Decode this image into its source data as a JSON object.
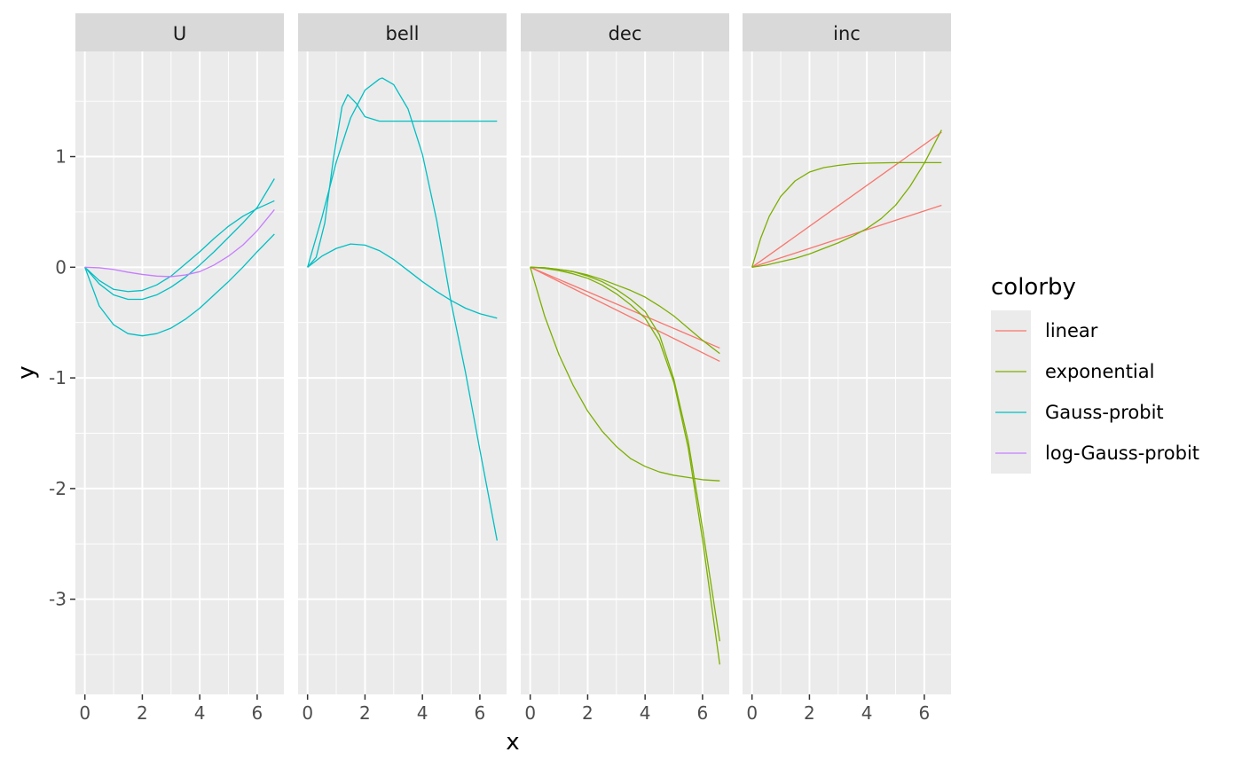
{
  "chart_data": {
    "type": "line",
    "facets": [
      "U",
      "bell",
      "dec",
      "inc"
    ],
    "xlabel": "x",
    "ylabel": "y",
    "xlim": [
      -0.33,
      6.93
    ],
    "ylim": [
      -3.86,
      1.95
    ],
    "x_ticks": [
      0,
      2,
      4,
      6
    ],
    "x_tick_labels": [
      "0",
      "2",
      "4",
      "6"
    ],
    "y_ticks": [
      1,
      0,
      -1,
      -2,
      -3
    ],
    "y_tick_labels": [
      "1",
      "0",
      "-1",
      "-2",
      "-3"
    ],
    "grid": true,
    "legend": {
      "title": "colorby",
      "position": "right",
      "entries": [
        {
          "label": "linear",
          "color": "#F8766D"
        },
        {
          "label": "exponential",
          "color": "#7CAE00"
        },
        {
          "label": "Gauss-probit",
          "color": "#00BFC4"
        },
        {
          "label": "log-Gauss-probit",
          "color": "#C77CFF"
        }
      ]
    },
    "series": [
      {
        "facet": "U",
        "group": "Gauss-probit",
        "x": [
          0,
          0.5,
          1,
          1.5,
          2,
          2.5,
          3,
          3.5,
          4,
          4.5,
          5,
          5.5,
          6,
          6.6
        ],
        "y": [
          0,
          -0.35,
          -0.52,
          -0.6,
          -0.62,
          -0.6,
          -0.55,
          -0.47,
          -0.37,
          -0.25,
          -0.13,
          0.0,
          0.14,
          0.3
        ]
      },
      {
        "facet": "U",
        "group": "Gauss-probit",
        "x": [
          0,
          0.5,
          1,
          1.5,
          2,
          2.5,
          3,
          3.5,
          4,
          4.5,
          5,
          5.5,
          6,
          6.6
        ],
        "y": [
          0,
          -0.15,
          -0.25,
          -0.29,
          -0.29,
          -0.25,
          -0.18,
          -0.09,
          0.02,
          0.14,
          0.27,
          0.4,
          0.54,
          0.8
        ]
      },
      {
        "facet": "U",
        "group": "Gauss-probit",
        "x": [
          0,
          0.5,
          1,
          1.5,
          2,
          2.5,
          3,
          3.5,
          4,
          4.5,
          5,
          5.5,
          6,
          6.6
        ],
        "y": [
          0,
          -0.12,
          -0.2,
          -0.22,
          -0.21,
          -0.16,
          -0.08,
          0.03,
          0.14,
          0.26,
          0.37,
          0.46,
          0.53,
          0.6
        ]
      },
      {
        "facet": "U",
        "group": "log-Gauss-probit",
        "x": [
          0,
          0.5,
          1,
          1.5,
          2,
          2.5,
          3,
          3.5,
          4,
          4.5,
          5,
          5.5,
          6,
          6.6
        ],
        "y": [
          0,
          -0.005,
          -0.02,
          -0.045,
          -0.065,
          -0.08,
          -0.085,
          -0.07,
          -0.04,
          0.02,
          0.1,
          0.2,
          0.33,
          0.52
        ]
      },
      {
        "facet": "bell",
        "group": "Gauss-probit",
        "x": [
          0,
          0.5,
          1,
          1.5,
          2,
          2.5,
          3,
          3.5,
          4,
          4.5,
          5,
          5.5,
          6,
          6.6
        ],
        "y": [
          0,
          0.1,
          0.17,
          0.21,
          0.2,
          0.15,
          0.07,
          -0.03,
          -0.13,
          -0.22,
          -0.3,
          -0.37,
          -0.42,
          -0.46
        ]
      },
      {
        "facet": "bell",
        "group": "Gauss-probit",
        "x": [
          0,
          0.3,
          0.6,
          0.9,
          1.2,
          1.4,
          1.7,
          2.0,
          2.5,
          3.0,
          4.0,
          5.0,
          6.0,
          6.6
        ],
        "y": [
          0,
          0.09,
          0.4,
          0.98,
          1.45,
          1.56,
          1.48,
          1.36,
          1.32,
          1.32,
          1.32,
          1.32,
          1.32,
          1.32
        ]
      },
      {
        "facet": "bell",
        "group": "Gauss-probit",
        "x": [
          0,
          0.5,
          1,
          1.5,
          2,
          2.5,
          2.6,
          3,
          3.5,
          4,
          4.5,
          5,
          5.5,
          6,
          6.6
        ],
        "y": [
          0,
          0.45,
          0.95,
          1.35,
          1.6,
          1.7,
          1.71,
          1.65,
          1.43,
          1.02,
          0.42,
          -0.32,
          -0.95,
          -1.65,
          -2.47
        ]
      },
      {
        "facet": "dec",
        "group": "linear",
        "x": [
          0,
          6.6
        ],
        "y": [
          0,
          -0.85
        ]
      },
      {
        "facet": "dec",
        "group": "linear",
        "x": [
          0,
          6.6
        ],
        "y": [
          0,
          -0.73
        ]
      },
      {
        "facet": "dec",
        "group": "exponential",
        "x": [
          0,
          0.5,
          1,
          1.5,
          2,
          2.5,
          3,
          3.5,
          4,
          4.5,
          5,
          5.5,
          6,
          6.6
        ],
        "y": [
          0,
          -0.44,
          -0.79,
          -1.07,
          -1.3,
          -1.48,
          -1.62,
          -1.73,
          -1.8,
          -1.85,
          -1.88,
          -1.9,
          -1.92,
          -1.93
        ]
      },
      {
        "facet": "dec",
        "group": "exponential",
        "x": [
          0,
          0.5,
          1,
          1.5,
          2,
          2.5,
          3,
          3.5,
          4,
          4.5,
          5,
          5.5,
          6,
          6.6
        ],
        "y": [
          0,
          -0.005,
          -0.02,
          -0.04,
          -0.08,
          -0.13,
          -0.2,
          -0.29,
          -0.4,
          -0.61,
          -1.01,
          -1.57,
          -2.36,
          -3.38
        ]
      },
      {
        "facet": "dec",
        "group": "exponential",
        "x": [
          0,
          0.5,
          1,
          1.5,
          2,
          2.5,
          3,
          3.5,
          4,
          4.5,
          5,
          5.5,
          6,
          6.6
        ],
        "y": [
          0,
          -0.01,
          -0.03,
          -0.06,
          -0.1,
          -0.16,
          -0.24,
          -0.34,
          -0.46,
          -0.67,
          -1.04,
          -1.63,
          -2.46,
          -3.59
        ]
      },
      {
        "facet": "dec",
        "group": "exponential",
        "x": [
          0,
          0.5,
          1,
          1.5,
          2,
          2.5,
          3,
          3.5,
          4,
          4.5,
          5,
          5.5,
          6,
          6.6
        ],
        "y": [
          0,
          -0.005,
          -0.02,
          -0.04,
          -0.07,
          -0.11,
          -0.16,
          -0.21,
          -0.27,
          -0.35,
          -0.44,
          -0.55,
          -0.66,
          -0.78
        ]
      },
      {
        "facet": "inc",
        "group": "linear",
        "x": [
          0,
          6.6
        ],
        "y": [
          0,
          1.22
        ]
      },
      {
        "facet": "inc",
        "group": "linear",
        "x": [
          0,
          6.6
        ],
        "y": [
          0,
          0.56
        ]
      },
      {
        "facet": "inc",
        "group": "exponential",
        "x": [
          0,
          0.3,
          0.6,
          1,
          1.5,
          2,
          2.5,
          3,
          3.5,
          4,
          5,
          6,
          6.6
        ],
        "y": [
          0,
          0.26,
          0.46,
          0.64,
          0.78,
          0.86,
          0.9,
          0.92,
          0.935,
          0.94,
          0.945,
          0.945,
          0.945
        ]
      },
      {
        "facet": "inc",
        "group": "exponential",
        "x": [
          0,
          0.5,
          1,
          1.5,
          2,
          2.5,
          3,
          3.5,
          4,
          4.5,
          5,
          5.5,
          6,
          6.6
        ],
        "y": [
          0,
          0.02,
          0.05,
          0.08,
          0.12,
          0.17,
          0.22,
          0.28,
          0.35,
          0.44,
          0.56,
          0.73,
          0.94,
          1.24
        ]
      }
    ]
  }
}
